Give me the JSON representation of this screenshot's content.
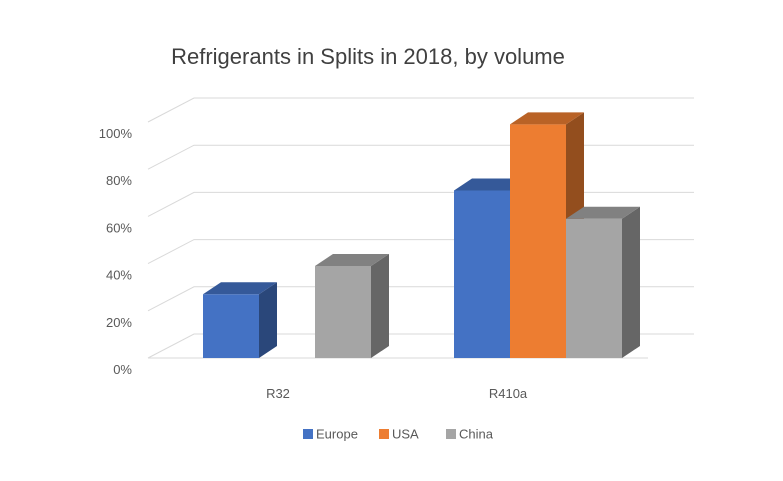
{
  "chart_data": {
    "type": "bar",
    "title": "Refrigerants in Splits in 2018, by volume",
    "categories": [
      "R32",
      "R410a"
    ],
    "series": [
      {
        "name": "Europe",
        "color": "#4472c4",
        "values": [
          27,
          71
        ]
      },
      {
        "name": "USA",
        "color": "#ed7d31",
        "values": [
          null,
          99
        ]
      },
      {
        "name": "China",
        "color": "#a5a5a5",
        "values": [
          39,
          59
        ]
      }
    ],
    "yticks": [
      "0%",
      "20%",
      "40%",
      "60%",
      "80%",
      "100%"
    ],
    "ylim": [
      0,
      100
    ],
    "grid": true,
    "legend_position": "bottom",
    "style": "3d-column"
  }
}
